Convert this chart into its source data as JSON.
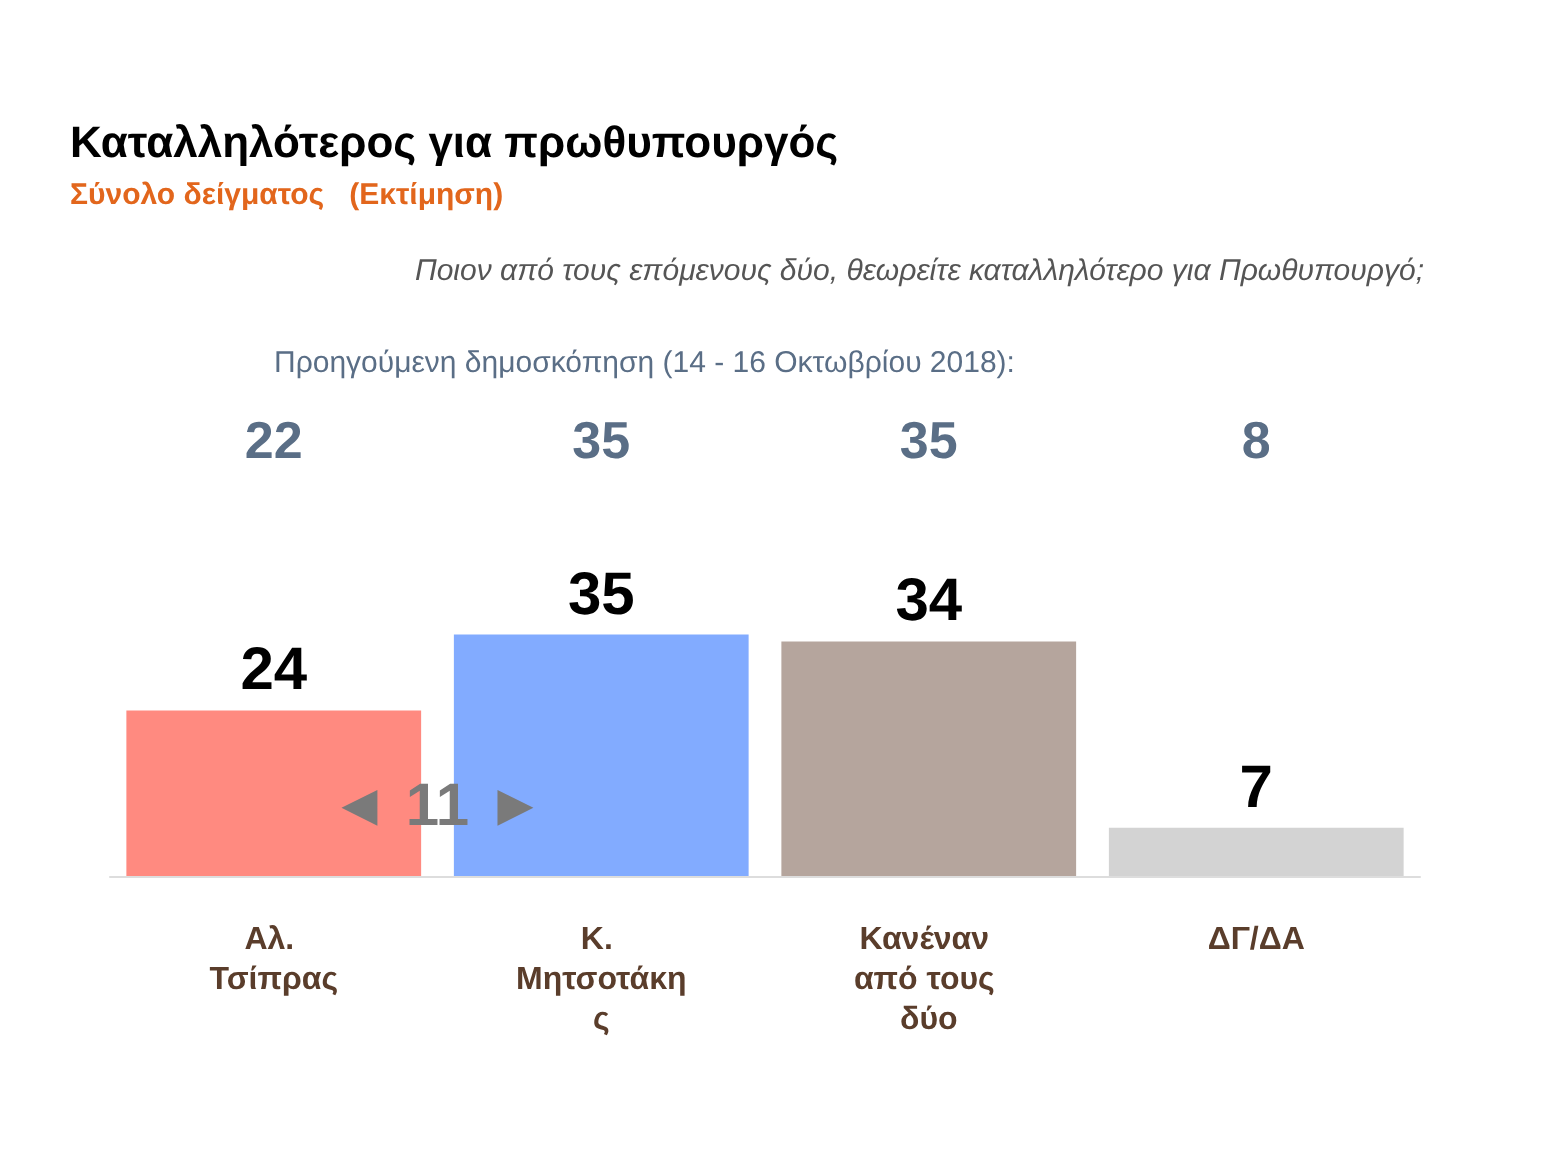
{
  "chart_data": {
    "type": "bar",
    "title": "Καταλληλότερος για πρωθυπουργός",
    "subtitle": "Σύνολο δείγματος   (Εκτίμηση)",
    "categories": [
      "Αλ. Τσίπρας",
      "Κ. Μητσοτάκης",
      "Κανέναν από τους δύο",
      "ΔΓ/ΔΑ"
    ],
    "values": [
      24,
      35,
      34,
      7
    ],
    "colors": [
      "#ff8a80",
      "#82abff",
      "#b5a59d",
      "#d3d3d3"
    ],
    "data_labels": true,
    "annotations": [
      "Ποιον από τους επόμενους δύο, θεωρείτε καταλληλότερο για Πρωθυπουργό;",
      "Προηγούμενη δημοσκόπηση (14 - 16 Οκτωβρίου 2018):",
      "22",
      "35",
      "35",
      "8",
      "◄ 11 ►"
    ]
  }
}
